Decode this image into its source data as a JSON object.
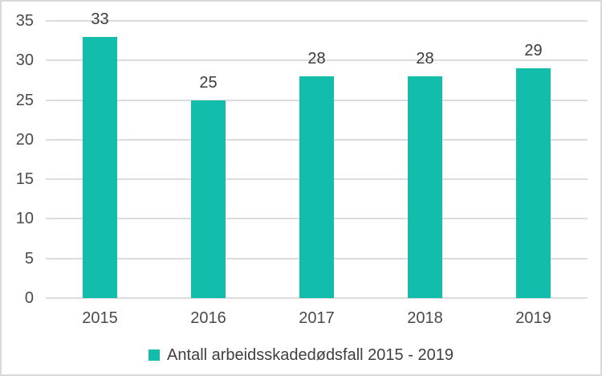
{
  "chart_data": {
    "type": "bar",
    "categories": [
      "2015",
      "2016",
      "2017",
      "2018",
      "2019"
    ],
    "values": [
      33,
      25,
      28,
      28,
      29
    ],
    "data_labels": [
      "33",
      "25",
      "28",
      "28",
      "29"
    ],
    "series_name": "Antall arbeidsskadedødsfall 2015 - 2019",
    "title": "",
    "xlabel": "",
    "ylabel": "",
    "ylim": [
      0,
      35
    ],
    "yticks": [
      0,
      5,
      10,
      15,
      20,
      25,
      30,
      35
    ],
    "grid": true,
    "legend_position": "bottom",
    "colors": {
      "bar": "#12bdab",
      "gridline": "#dcdcdc",
      "tick_text": "#4a4a4a",
      "value_text": "#3b3b3b",
      "legend_text": "#3f3f3f",
      "border": "#d9d9d9",
      "background": "#ffffff"
    }
  }
}
